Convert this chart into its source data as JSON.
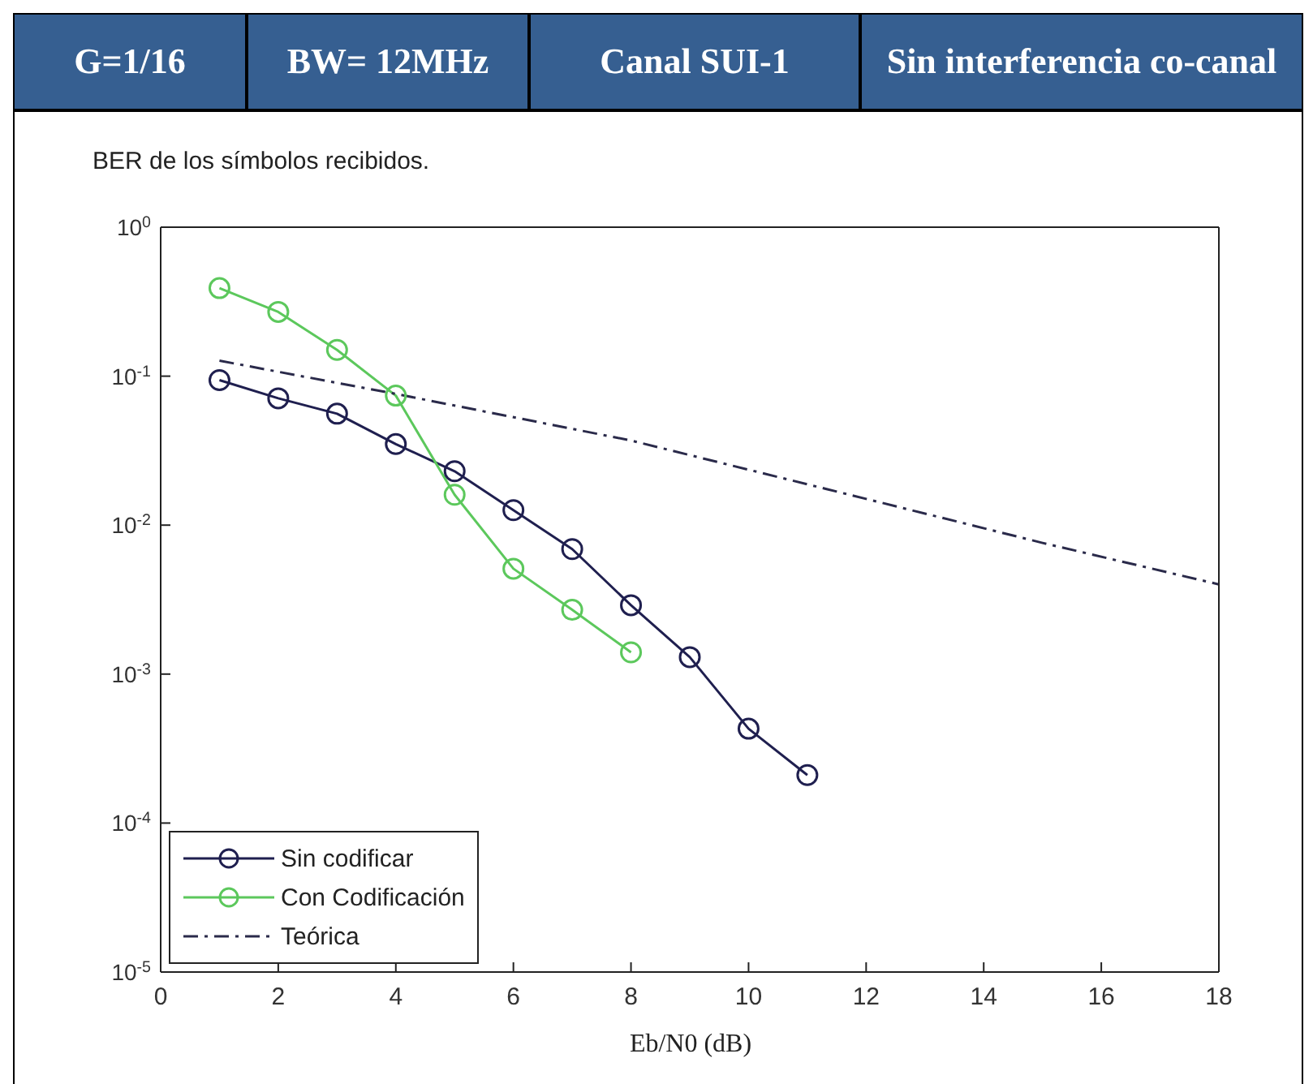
{
  "chart_data": {
    "type": "line",
    "title": "BER de los símbolos recibidos.",
    "xlabel": "Eb/N0 (dB)",
    "annotations": [
      "G=1/16",
      "BW= 12MHz",
      "Canal SUI-1",
      "Sin interferencia co-canal"
    ],
    "xlim": [
      0,
      18
    ],
    "xticks": [
      0,
      2,
      4,
      6,
      8,
      10,
      12,
      14,
      16,
      18
    ],
    "ylim": [
      1e-05,
      1
    ],
    "yticks": [
      {
        "value": 1e-05,
        "label": "10$^{-5}$"
      },
      {
        "value": 0.0001,
        "label": "10$^{-4}$"
      },
      {
        "value": 0.001,
        "label": "10$^{-3}$"
      },
      {
        "value": 0.01,
        "label": "10$^{-2}$"
      },
      {
        "value": 0.1,
        "label": "10$^{-1}$"
      },
      {
        "value": 1,
        "label": "10$^{0}$"
      }
    ],
    "log": "y",
    "grid": false,
    "legend": "bottom left",
    "series": [
      {
        "name": "Sin codificar",
        "color": "#1f1f4f",
        "marker": "circle",
        "line_style": "solid",
        "x": [
          1,
          2,
          3,
          4,
          5,
          6,
          7,
          8,
          9,
          10,
          11
        ],
        "values": [
          0.094,
          0.071,
          0.056,
          0.035,
          0.023,
          0.0126,
          0.0069,
          0.0029,
          0.0013,
          0.00043,
          0.00021
        ]
      },
      {
        "name": "Con Codificación",
        "color": "#5cc85c",
        "marker": "circle",
        "line_style": "solid",
        "x": [
          1,
          2,
          3,
          4,
          5,
          6,
          7,
          8
        ],
        "values": [
          0.39,
          0.27,
          0.15,
          0.074,
          0.016,
          0.0051,
          0.0027,
          0.0014
        ]
      },
      {
        "name": "Teórica",
        "color": "#2a2a4a",
        "marker": "none",
        "line_style": "dashed",
        "x": [
          1,
          4,
          8,
          12,
          15,
          18
        ],
        "values": [
          0.127,
          0.076,
          0.037,
          0.015,
          0.0076,
          0.004
        ]
      }
    ]
  }
}
